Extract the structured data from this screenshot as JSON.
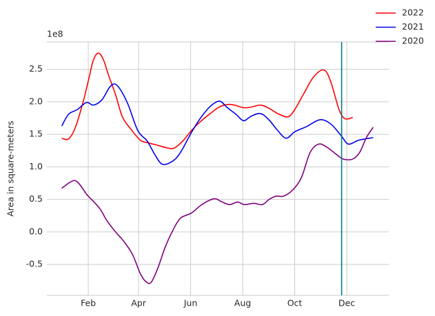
{
  "chart_data": {
    "type": "line",
    "ylabel": "Area in square-meters",
    "y_offset_label": "1e8",
    "xlim": [
      -16.5,
      384.3
    ],
    "ylim": [
      -0.975,
      2.92
    ],
    "xticks": [
      {
        "value": 32,
        "label": "Feb"
      },
      {
        "value": 91,
        "label": "Apr"
      },
      {
        "value": 152,
        "label": "Jun"
      },
      {
        "value": 213,
        "label": "Aug"
      },
      {
        "value": 274,
        "label": "Oct"
      },
      {
        "value": 335,
        "label": "Dec"
      }
    ],
    "yticks": [
      -0.5,
      {
        "value": 0,
        "label": "0.0"
      },
      0.5,
      {
        "value": 1,
        "label": "1.0"
      },
      1.5,
      {
        "value": 2,
        "label": "2.0"
      },
      2.5
    ],
    "grid": true,
    "legend": "upper right",
    "vline": {
      "x": 329,
      "color": "#007b80"
    },
    "series": [
      {
        "name": "2022",
        "color": "#ff0000",
        "x": [
          1,
          9,
          17,
          26,
          32,
          38,
          44,
          50,
          56,
          64,
          72,
          82,
          93,
          102,
          114,
          125,
          133,
          143,
          153,
          163,
          175,
          187,
          199,
          214,
          223,
          234,
          244,
          254,
          266,
          274,
          284,
          296,
          308,
          316,
          326,
          333,
          342
        ],
        "values": [
          1.44,
          1.43,
          1.61,
          2.0,
          2.32,
          2.64,
          2.75,
          2.64,
          2.4,
          2.11,
          1.77,
          1.58,
          1.41,
          1.37,
          1.33,
          1.29,
          1.29,
          1.4,
          1.56,
          1.69,
          1.82,
          1.93,
          1.96,
          1.91,
          1.92,
          1.95,
          1.9,
          1.82,
          1.77,
          1.88,
          2.11,
          2.38,
          2.49,
          2.32,
          1.88,
          1.74,
          1.76
        ]
      },
      {
        "name": "2021",
        "color": "#0000ee",
        "x": [
          1,
          9,
          19,
          30,
          38,
          48,
          58,
          66,
          78,
          90,
          101,
          110,
          119,
          131,
          140,
          153,
          163,
          175,
          186,
          195,
          205,
          214,
          223,
          234,
          244,
          254,
          264,
          274,
          288,
          300,
          308,
          318,
          329,
          337,
          349,
          366
        ],
        "values": [
          1.63,
          1.81,
          1.88,
          1.99,
          1.95,
          2.03,
          2.24,
          2.25,
          1.98,
          1.56,
          1.4,
          1.19,
          1.04,
          1.09,
          1.22,
          1.53,
          1.74,
          1.93,
          2.01,
          1.91,
          1.81,
          1.71,
          1.78,
          1.82,
          1.72,
          1.56,
          1.44,
          1.54,
          1.62,
          1.71,
          1.72,
          1.64,
          1.47,
          1.35,
          1.41,
          1.45
        ]
      },
      {
        "name": "2020",
        "color": "#800080",
        "x": [
          1,
          9,
          16,
          22,
          30,
          38,
          46,
          54,
          64,
          74,
          84,
          93,
          100,
          106,
          114,
          122,
          131,
          140,
          153,
          163,
          173,
          181,
          189,
          198,
          207,
          215,
          226,
          236,
          244,
          252,
          261,
          272,
          282,
          292,
          302,
          312,
          323,
          331,
          342,
          350,
          358,
          366
        ],
        "values": [
          0.67,
          0.75,
          0.79,
          0.73,
          0.58,
          0.47,
          0.35,
          0.17,
          0.0,
          -0.15,
          -0.35,
          -0.64,
          -0.77,
          -0.77,
          -0.54,
          -0.24,
          0.02,
          0.21,
          0.29,
          0.4,
          0.48,
          0.51,
          0.46,
          0.42,
          0.46,
          0.42,
          0.44,
          0.42,
          0.5,
          0.55,
          0.55,
          0.65,
          0.84,
          1.22,
          1.35,
          1.3,
          1.19,
          1.12,
          1.12,
          1.22,
          1.45,
          1.61
        ]
      }
    ]
  }
}
